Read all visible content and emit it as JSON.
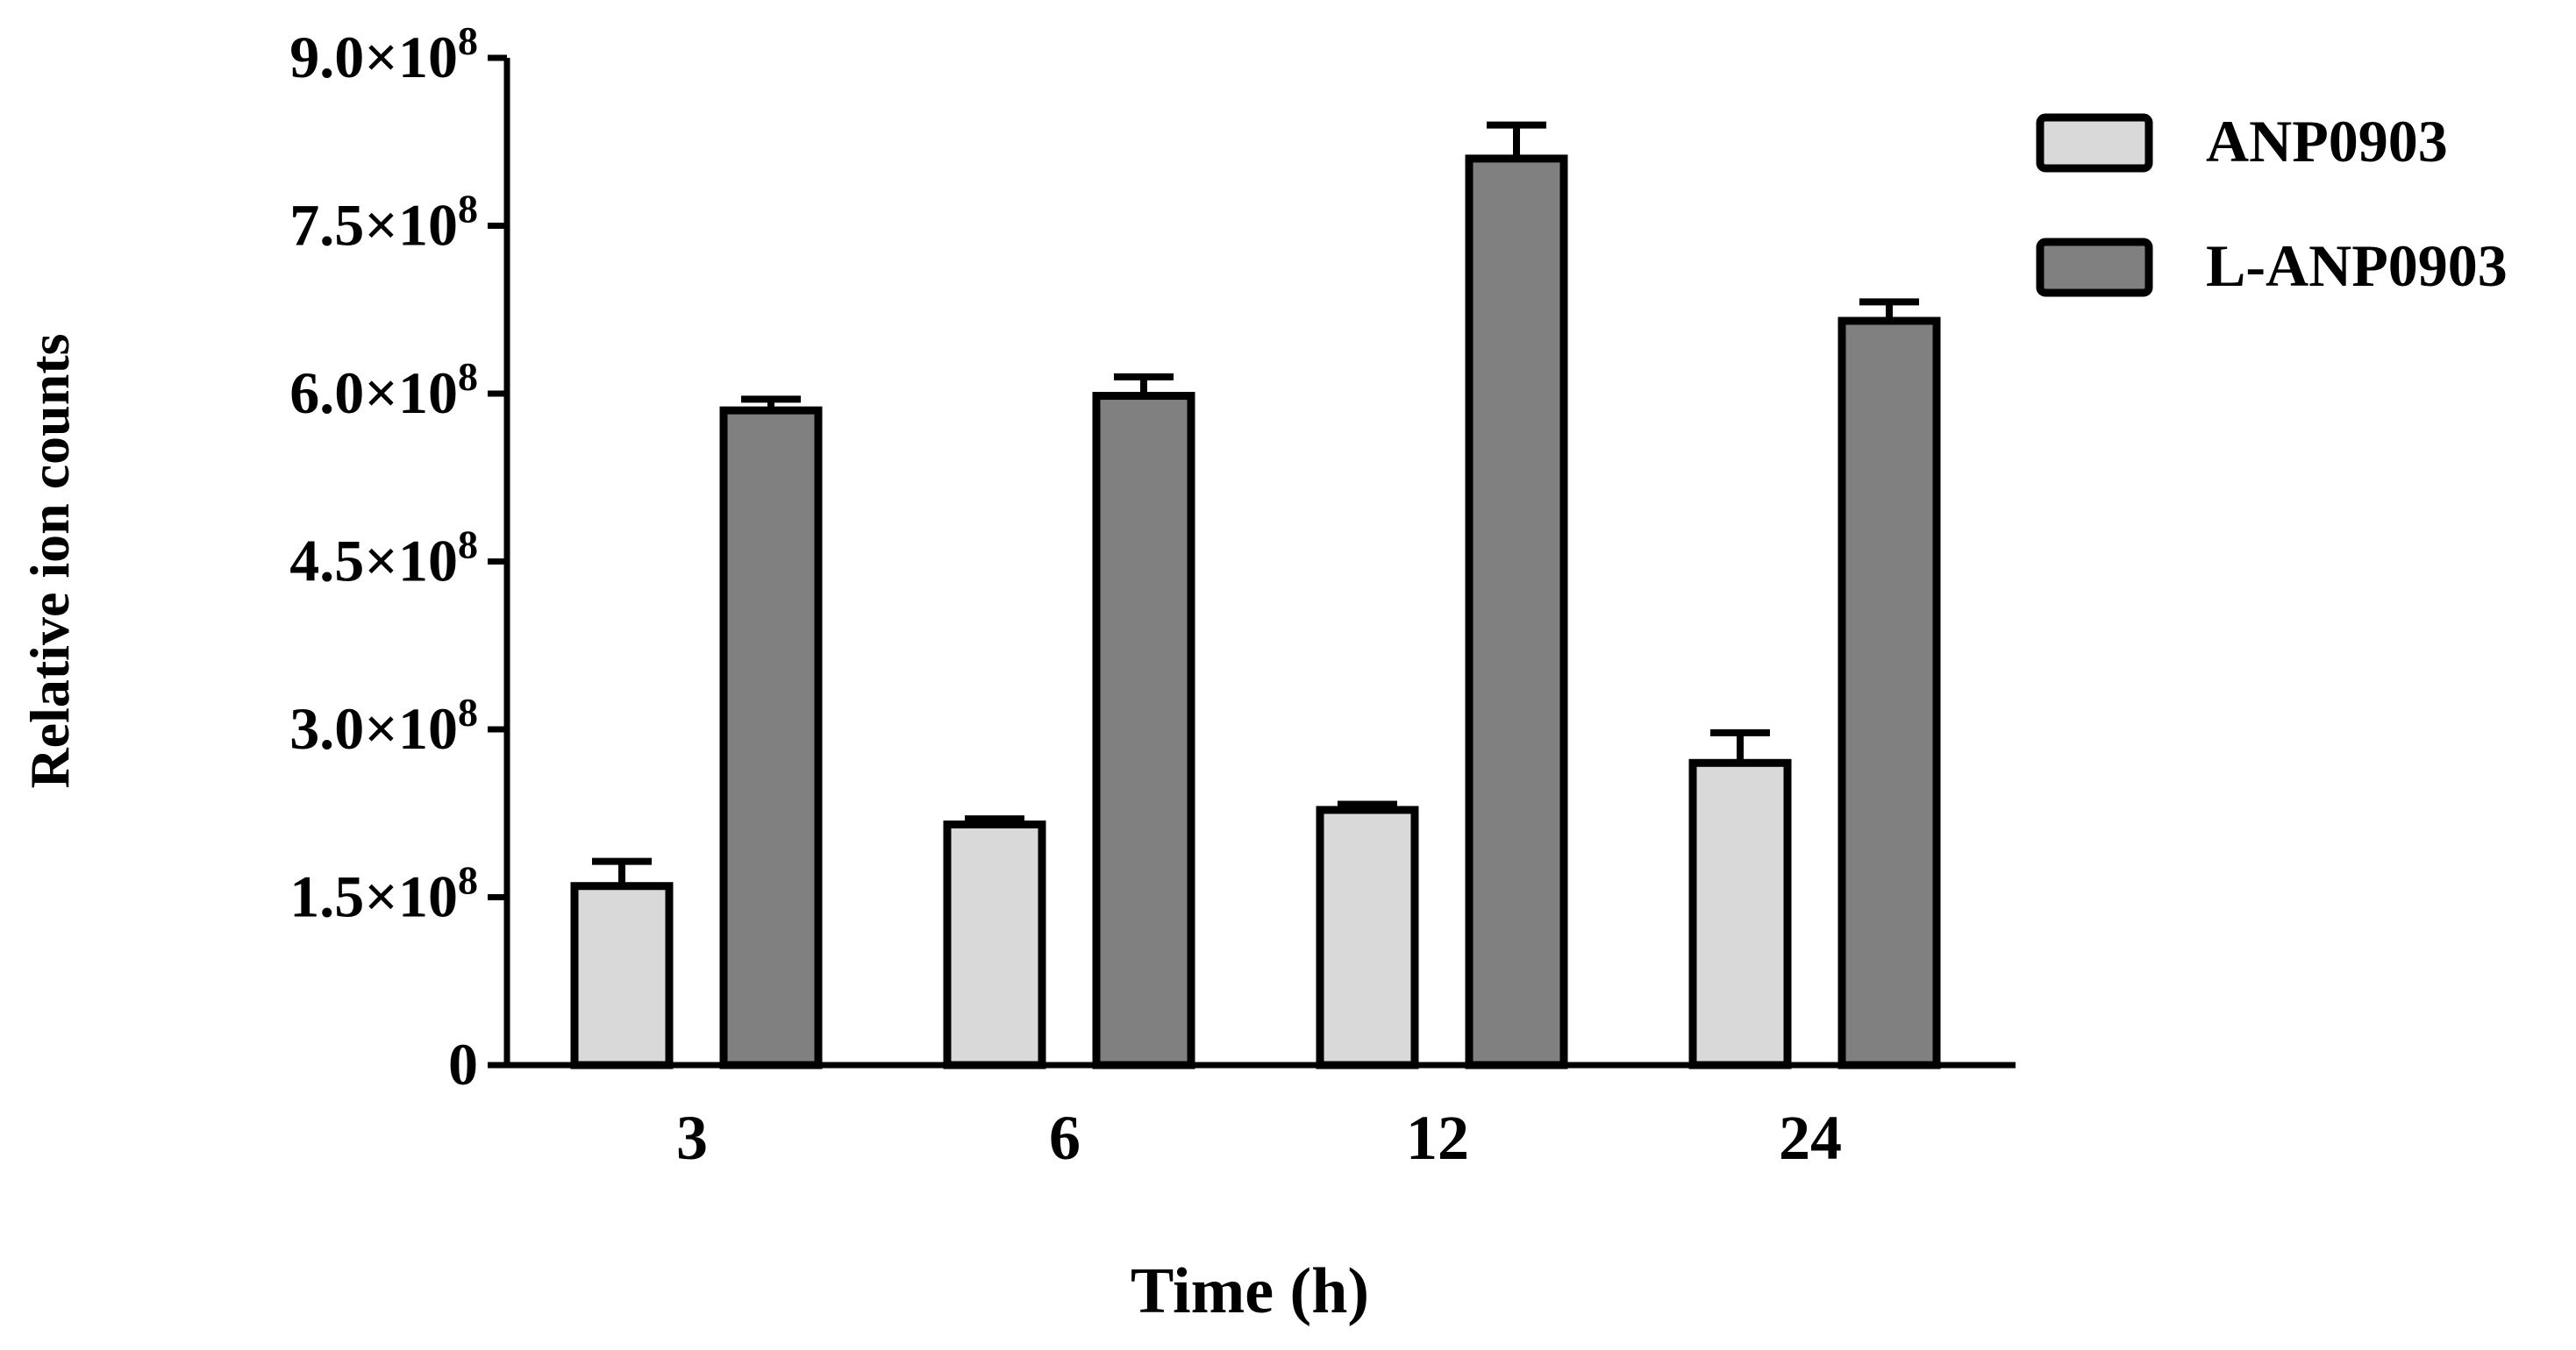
{
  "chart_data": {
    "type": "bar",
    "title": "",
    "xlabel": "Time (h)",
    "ylabel": "Relative ion counts",
    "categories": [
      "3",
      "6",
      "12",
      "24"
    ],
    "ylim": [
      0,
      900000000
    ],
    "y_ticks": [
      {
        "value": 0,
        "mantissa": "0",
        "exp": ""
      },
      {
        "value": 150000000,
        "mantissa": "1.5×10",
        "exp": "8"
      },
      {
        "value": 300000000,
        "mantissa": "3.0×10",
        "exp": "8"
      },
      {
        "value": 450000000,
        "mantissa": "4.5×10",
        "exp": "8"
      },
      {
        "value": 600000000,
        "mantissa": "6.0×10",
        "exp": "8"
      },
      {
        "value": 750000000,
        "mantissa": "7.5×10",
        "exp": "8"
      },
      {
        "value": 900000000,
        "mantissa": "9.0×10",
        "exp": "8"
      }
    ],
    "series": [
      {
        "name": "ANP0903",
        "color": "#d9d9d9",
        "values": [
          160000000,
          215000000,
          228000000,
          270000000
        ],
        "errors": [
          22000000,
          5000000,
          5000000,
          27000000
        ]
      },
      {
        "name": "L-ANP0903",
        "color": "#808080",
        "values": [
          585000000,
          598000000,
          810000000,
          665000000
        ],
        "errors": [
          10000000,
          17000000,
          30000000,
          17000000
        ]
      }
    ],
    "legend_position": "top-right",
    "grid": false
  }
}
